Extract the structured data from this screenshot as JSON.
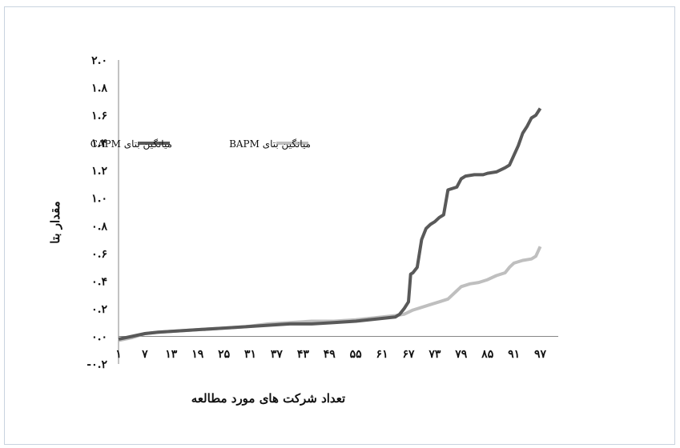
{
  "chart_data": {
    "type": "line",
    "title": "",
    "xlabel": "تعداد شرکت های مورد مطالعه",
    "ylabel": "مقدار بتا",
    "ylim": [
      -0.2,
      2.0
    ],
    "y_ticks": [
      {
        "value": 2.0,
        "label": "۲.۰"
      },
      {
        "value": 1.8,
        "label": "۱.۸"
      },
      {
        "value": 1.6,
        "label": "۱.۶"
      },
      {
        "value": 1.4,
        "label": "۱.۴"
      },
      {
        "value": 1.2,
        "label": "۱.۲"
      },
      {
        "value": 1.0,
        "label": "۱.۰"
      },
      {
        "value": 0.8,
        "label": "۰.۸"
      },
      {
        "value": 0.6,
        "label": "۰.۶"
      },
      {
        "value": 0.4,
        "label": "۰.۴"
      },
      {
        "value": 0.2,
        "label": "۰.۲"
      },
      {
        "value": 0.0,
        "label": "۰.۰"
      },
      {
        "value": -0.2,
        "label": "-۰.۲"
      }
    ],
    "x_ticks": [
      {
        "value": 1,
        "label": "۱"
      },
      {
        "value": 7,
        "label": "۷"
      },
      {
        "value": 13,
        "label": "۱۳"
      },
      {
        "value": 19,
        "label": "۱۹"
      },
      {
        "value": 25,
        "label": "۲۵"
      },
      {
        "value": 31,
        "label": "۳۱"
      },
      {
        "value": 37,
        "label": "۳۷"
      },
      {
        "value": 43,
        "label": "۴۳"
      },
      {
        "value": 49,
        "label": "۴۹"
      },
      {
        "value": 55,
        "label": "۵۵"
      },
      {
        "value": 61,
        "label": "۶۱"
      },
      {
        "value": 67,
        "label": "۶۷"
      },
      {
        "value": 73,
        "label": "۷۳"
      },
      {
        "value": 79,
        "label": "۷۹"
      },
      {
        "value": 85,
        "label": "۸۵"
      },
      {
        "value": 91,
        "label": "۹۱"
      },
      {
        "value": 97,
        "label": "۹۷"
      }
    ],
    "xlim": [
      1,
      98
    ],
    "legend_position": "top-left",
    "series": [
      {
        "name": "میانگین بتای CAPM",
        "color": "#595959",
        "points": [
          [
            1,
            -0.02
          ],
          [
            4,
            0.0
          ],
          [
            7,
            0.02
          ],
          [
            10,
            0.03
          ],
          [
            15,
            0.04
          ],
          [
            20,
            0.05
          ],
          [
            25,
            0.06
          ],
          [
            30,
            0.07
          ],
          [
            35,
            0.08
          ],
          [
            40,
            0.09
          ],
          [
            45,
            0.09
          ],
          [
            50,
            0.1
          ],
          [
            55,
            0.11
          ],
          [
            58,
            0.12
          ],
          [
            61,
            0.13
          ],
          [
            64,
            0.14
          ],
          [
            65,
            0.16
          ],
          [
            66,
            0.2
          ],
          [
            67,
            0.25
          ],
          [
            67.5,
            0.45
          ],
          [
            68,
            0.46
          ],
          [
            69,
            0.5
          ],
          [
            70,
            0.7
          ],
          [
            71,
            0.78
          ],
          [
            72,
            0.81
          ],
          [
            73,
            0.83
          ],
          [
            74,
            0.86
          ],
          [
            75,
            0.88
          ],
          [
            76,
            1.06
          ],
          [
            77,
            1.07
          ],
          [
            78,
            1.08
          ],
          [
            79,
            1.14
          ],
          [
            80,
            1.16
          ],
          [
            82,
            1.17
          ],
          [
            84,
            1.17
          ],
          [
            85,
            1.18
          ],
          [
            87,
            1.19
          ],
          [
            89,
            1.22
          ],
          [
            90,
            1.24
          ],
          [
            91,
            1.31
          ],
          [
            92,
            1.38
          ],
          [
            93,
            1.47
          ],
          [
            94,
            1.52
          ],
          [
            95,
            1.58
          ],
          [
            96,
            1.6
          ],
          [
            97,
            1.65
          ]
        ]
      },
      {
        "name": "میانگین بتای BAPM",
        "color": "#bfbfbf",
        "points": [
          [
            1,
            -0.03
          ],
          [
            4,
            -0.01
          ],
          [
            7,
            0.02
          ],
          [
            10,
            0.03
          ],
          [
            15,
            0.04
          ],
          [
            20,
            0.05
          ],
          [
            25,
            0.06
          ],
          [
            30,
            0.07
          ],
          [
            35,
            0.09
          ],
          [
            40,
            0.1
          ],
          [
            45,
            0.11
          ],
          [
            50,
            0.11
          ],
          [
            55,
            0.12
          ],
          [
            58,
            0.13
          ],
          [
            61,
            0.14
          ],
          [
            64,
            0.15
          ],
          [
            66,
            0.16
          ],
          [
            68,
            0.19
          ],
          [
            70,
            0.21
          ],
          [
            72,
            0.23
          ],
          [
            74,
            0.25
          ],
          [
            76,
            0.27
          ],
          [
            78,
            0.33
          ],
          [
            79,
            0.36
          ],
          [
            81,
            0.38
          ],
          [
            83,
            0.39
          ],
          [
            85,
            0.41
          ],
          [
            87,
            0.44
          ],
          [
            89,
            0.46
          ],
          [
            90,
            0.5
          ],
          [
            91,
            0.53
          ],
          [
            93,
            0.55
          ],
          [
            95,
            0.56
          ],
          [
            96,
            0.58
          ],
          [
            97,
            0.65
          ]
        ]
      }
    ]
  }
}
